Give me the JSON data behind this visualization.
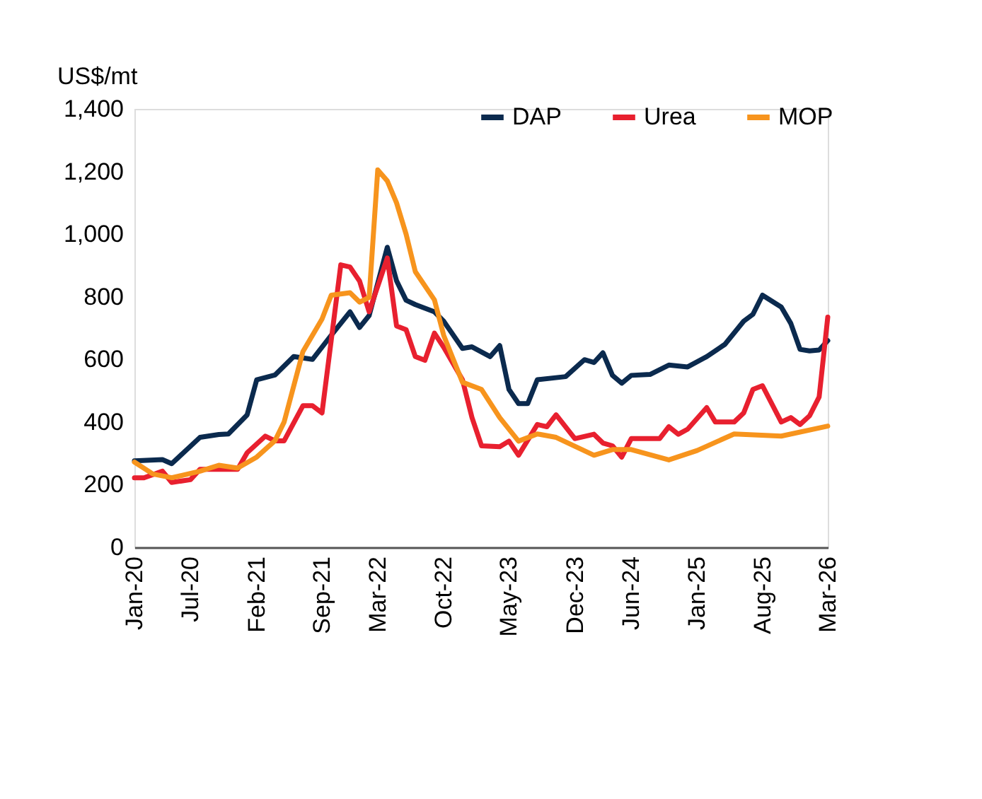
{
  "chart_data": {
    "type": "line",
    "ylabel": "US$/mt",
    "legend": "top right",
    "grid": false,
    "line_style": "solid",
    "marker": "none",
    "xlim": [
      "2020-01",
      "2026-03"
    ],
    "xticks": [
      {
        "value": "2020-01",
        "label": "Jan-20"
      },
      {
        "value": "2020-07",
        "label": "Jul-20"
      },
      {
        "value": "2021-02",
        "label": "Feb-21"
      },
      {
        "value": "2021-09",
        "label": "Sep-21"
      },
      {
        "value": "2022-03",
        "label": "Mar-22"
      },
      {
        "value": "2022-10",
        "label": "Oct-22"
      },
      {
        "value": "2023-05",
        "label": "May-23"
      },
      {
        "value": "2023-12",
        "label": "Dec-23"
      },
      {
        "value": "2024-06",
        "label": "Jun-24"
      },
      {
        "value": "2025-01",
        "label": "Jan-25"
      },
      {
        "value": "2025-08",
        "label": "Aug-25"
      },
      {
        "value": "2026-03",
        "label": "Mar-26"
      }
    ],
    "ylim": [
      0,
      1400
    ],
    "yticks": [
      0,
      200,
      400,
      600,
      800,
      {
        "value": 1000,
        "label": "1,000"
      },
      {
        "value": 1200,
        "label": "1,200"
      },
      {
        "value": 1400,
        "label": "1,400"
      }
    ],
    "series": [
      {
        "name": "DAP",
        "color": "#0b2a4e",
        "x": [
          "2020-01",
          "2020-04",
          "2020-05",
          "2020-08",
          "2020-10",
          "2020-11",
          "2021-01",
          "2021-02",
          "2021-04",
          "2021-06",
          "2021-08",
          "2021-10",
          "2021-12",
          "2022-01",
          "2022-02",
          "2022-04",
          "2022-05",
          "2022-06",
          "2022-07",
          "2022-09",
          "2022-10",
          "2022-12",
          "2023-01",
          "2023-03",
          "2023-04",
          "2023-05",
          "2023-06",
          "2023-07",
          "2023-08",
          "2023-11",
          "2024-01",
          "2024-02",
          "2024-03",
          "2024-04",
          "2024-05",
          "2024-06",
          "2024-08",
          "2024-10",
          "2024-12",
          "2025-02",
          "2025-04",
          "2025-06",
          "2025-07",
          "2025-08",
          "2025-10",
          "2025-11",
          "2025-12",
          "2026-01",
          "2026-02",
          "2026-03"
        ],
        "values": [
          276,
          280,
          267,
          351,
          360,
          362,
          423,
          535,
          550,
          609,
          600,
          677,
          752,
          702,
          740,
          958,
          851,
          789,
          775,
          752,
          722,
          635,
          640,
          609,
          644,
          504,
          459,
          459,
          535,
          545,
          599,
          590,
          621,
          549,
          524,
          549,
          552,
          582,
          576,
          609,
          648,
          722,
          744,
          805,
          767,
          715,
          632,
          627,
          630,
          660
        ]
      },
      {
        "name": "Urea",
        "color": "#e8202f",
        "x": [
          "2020-01",
          "2020-02",
          "2020-04",
          "2020-05",
          "2020-07",
          "2020-08",
          "2020-12",
          "2021-01",
          "2021-03",
          "2021-04",
          "2021-05",
          "2021-07",
          "2021-08",
          "2021-09",
          "2021-11",
          "2021-12",
          "2022-01",
          "2022-02",
          "2022-04",
          "2022-05",
          "2022-06",
          "2022-07",
          "2022-08",
          "2022-09",
          "2022-10",
          "2022-12",
          "2023-01",
          "2023-02",
          "2023-04",
          "2023-05",
          "2023-06",
          "2023-08",
          "2023-09",
          "2023-10",
          "2023-12",
          "2024-02",
          "2024-03",
          "2024-04",
          "2024-05",
          "2024-06",
          "2024-09",
          "2024-10",
          "2024-11",
          "2024-12",
          "2025-02",
          "2025-03",
          "2025-05",
          "2025-06",
          "2025-07",
          "2025-08",
          "2025-10",
          "2025-11",
          "2025-12",
          "2026-01",
          "2026-02",
          "2026-03"
        ],
        "values": [
          222,
          222,
          243,
          207,
          216,
          249,
          249,
          302,
          355,
          340,
          340,
          452,
          452,
          429,
          902,
          895,
          850,
          752,
          924,
          707,
          695,
          609,
          597,
          684,
          639,
          535,
          414,
          324,
          321,
          339,
          294,
          392,
          385,
          423,
          347,
          361,
          333,
          324,
          288,
          347,
          347,
          385,
          361,
          377,
          446,
          400,
          400,
          429,
          504,
          516,
          400,
          414,
          392,
          420,
          480,
          735
        ]
      },
      {
        "name": "MOP",
        "color": "#f7941d",
        "x": [
          "2020-01",
          "2020-03",
          "2020-05",
          "2020-08",
          "2020-10",
          "2020-12",
          "2021-02",
          "2021-04",
          "2021-05",
          "2021-07",
          "2021-09",
          "2021-10",
          "2021-12",
          "2022-01",
          "2022-02",
          "2022-03",
          "2022-04",
          "2022-05",
          "2022-06",
          "2022-07",
          "2022-09",
          "2022-10",
          "2022-12",
          "2023-02",
          "2023-04",
          "2023-06",
          "2023-08",
          "2023-10",
          "2024-02",
          "2024-04",
          "2024-06",
          "2024-10",
          "2025-01",
          "2025-05",
          "2025-10",
          "2026-03"
        ],
        "values": [
          272,
          234,
          222,
          243,
          262,
          253,
          288,
          340,
          400,
          625,
          729,
          805,
          813,
          783,
          798,
          1205,
          1170,
          1100,
          1000,
          880,
          790,
          677,
          527,
          504,
          414,
          339,
          362,
          351,
          294,
          312,
          312,
          279,
          309,
          362,
          355,
          387
        ]
      }
    ]
  }
}
